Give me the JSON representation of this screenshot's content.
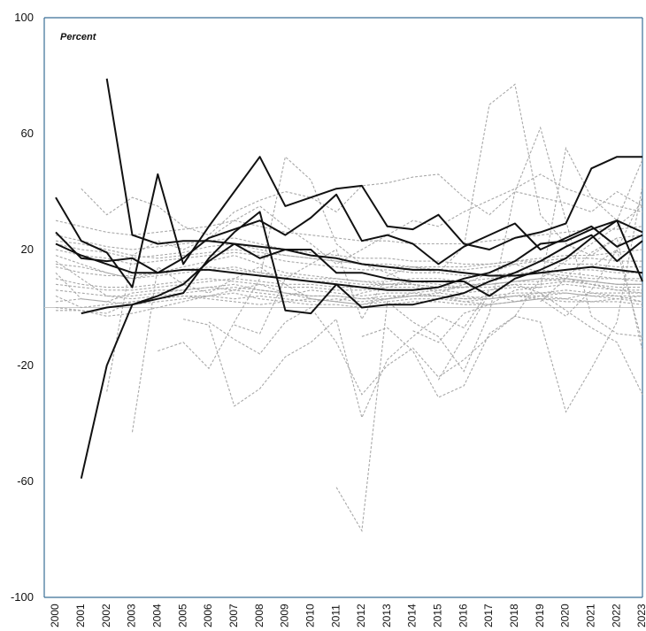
{
  "chart_data": {
    "type": "line",
    "unit_label": "Percent",
    "ylim": [
      -100,
      100
    ],
    "y_ticks": [
      100,
      60,
      20,
      -20,
      -60,
      -100
    ],
    "x": [
      "2000",
      "2001",
      "2002",
      "2003",
      "2004",
      "2005",
      "2006",
      "2007",
      "2008",
      "2009",
      "2010",
      "2011",
      "2012",
      "2013",
      "2014",
      "2015",
      "2016",
      "2017",
      "2018",
      "2019",
      "2020",
      "2021",
      "2022",
      "2023"
    ],
    "zero_line": true,
    "grid": false,
    "legend": "none",
    "colors": {
      "highlight": "#111111",
      "others": "#a8a8a8",
      "axis": "#3a6f96",
      "zero": "#c8c8c8"
    },
    "highlighted_series": [
      {
        "values": [
          null,
          -59,
          -20,
          1,
          3,
          5,
          17,
          26,
          33,
          -1,
          -2,
          8,
          0,
          1,
          1,
          3,
          5,
          9,
          12,
          16,
          21,
          25,
          16,
          23
        ]
      },
      {
        "values": [
          null,
          null,
          79,
          25,
          22,
          23,
          23,
          22,
          21,
          20,
          18,
          17,
          15,
          14,
          13,
          13,
          12,
          11,
          11,
          12,
          13,
          14,
          13,
          12
        ]
      },
      {
        "values": [
          38,
          23,
          19,
          7,
          46,
          15,
          28,
          40,
          52,
          35,
          38,
          41,
          42,
          28,
          27,
          32,
          22,
          20,
          24,
          26,
          29,
          48,
          52,
          52
        ]
      },
      {
        "values": [
          26,
          17,
          16,
          17,
          12,
          17,
          24,
          27,
          30,
          25,
          31,
          39,
          23,
          25,
          22,
          15,
          21,
          25,
          29,
          20,
          24,
          28,
          21,
          25
        ]
      },
      {
        "values": [
          null,
          -2,
          0,
          1,
          4,
          8,
          16,
          22,
          17,
          20,
          20,
          12,
          12,
          10,
          9,
          9,
          9,
          4,
          10,
          13,
          17,
          24,
          30,
          26
        ]
      },
      {
        "values": [
          22,
          18,
          15,
          12,
          12,
          13,
          13,
          12,
          11,
          10,
          9,
          8,
          7,
          6,
          6,
          7,
          10,
          12,
          16,
          22,
          23,
          27,
          30,
          9
        ]
      }
    ],
    "background_series": [
      {
        "values": [
          -1,
          -1,
          -3,
          -2,
          0,
          2,
          4,
          6,
          8,
          5,
          3,
          2,
          1,
          3,
          5,
          4,
          2,
          1,
          2,
          4,
          3,
          5,
          4,
          2
        ]
      },
      {
        "values": [
          4,
          0,
          1,
          2,
          3,
          4,
          4,
          3,
          4,
          3,
          2,
          3,
          2,
          3,
          4,
          5,
          4,
          3,
          4,
          4,
          5,
          4,
          3,
          4
        ]
      },
      {
        "values": [
          10,
          8,
          7,
          7,
          8,
          9,
          10,
          9,
          8,
          7,
          7,
          6,
          6,
          7,
          7,
          6,
          5,
          6,
          7,
          7,
          8,
          7,
          6,
          6
        ]
      },
      {
        "values": [
          15,
          14,
          12,
          10,
          11,
          12,
          13,
          14,
          12,
          10,
          9,
          9,
          8,
          8,
          9,
          9,
          8,
          8,
          9,
          10,
          10,
          9,
          8,
          8
        ]
      },
      {
        "values": [
          20,
          18,
          17,
          15,
          16,
          17,
          18,
          19,
          18,
          16,
          15,
          14,
          13,
          13,
          12,
          12,
          11,
          11,
          12,
          12,
          13,
          13,
          12,
          12
        ]
      },
      {
        "values": [
          25,
          23,
          21,
          20,
          21,
          22,
          23,
          24,
          22,
          20,
          19,
          18,
          17,
          17,
          16,
          16,
          15,
          15,
          16,
          16,
          17,
          17,
          16,
          16
        ]
      },
      {
        "values": [
          18,
          15,
          12,
          10,
          12,
          14,
          16,
          18,
          15,
          12,
          11,
          10,
          9,
          8,
          8,
          7,
          7,
          7,
          8,
          8,
          9,
          9,
          8,
          8
        ]
      },
      {
        "values": [
          2,
          3,
          2,
          1,
          2,
          3,
          4,
          5,
          3,
          2,
          1,
          1,
          0,
          1,
          2,
          2,
          1,
          1,
          2,
          3,
          3,
          2,
          2,
          1
        ]
      },
      {
        "values": [
          6,
          5,
          4,
          4,
          5,
          6,
          7,
          8,
          6,
          5,
          4,
          4,
          3,
          3,
          4,
          4,
          3,
          3,
          4,
          5,
          5,
          4,
          4,
          4
        ]
      },
      {
        "values": [
          12,
          3,
          2,
          5,
          6,
          6,
          7,
          6,
          5,
          4,
          6,
          5,
          4,
          5,
          5,
          6,
          7,
          8,
          9,
          10,
          9,
          8,
          7,
          7
        ]
      },
      {
        "values": [
          0,
          -1,
          -2,
          2,
          3,
          4,
          3,
          2,
          1,
          2,
          3,
          2,
          1,
          2,
          3,
          3,
          2,
          3,
          4,
          3,
          2,
          2,
          3,
          2
        ]
      },
      {
        "values": [
          22,
          20,
          19,
          17,
          18,
          19,
          21,
          22,
          20,
          18,
          17,
          16,
          15,
          14,
          14,
          13,
          13,
          14,
          15,
          16,
          15,
          15,
          14,
          14
        ]
      },
      {
        "values": [
          14,
          12,
          11,
          11,
          12,
          13,
          14,
          13,
          12,
          11,
          10,
          10,
          9,
          9,
          10,
          10,
          9,
          10,
          11,
          12,
          11,
          10,
          10,
          10
        ]
      },
      {
        "values": [
          8,
          7,
          6,
          6,
          7,
          8,
          9,
          10,
          9,
          8,
          8,
          7,
          7,
          8,
          8,
          7,
          7,
          8,
          9,
          9,
          10,
          9,
          8,
          8
        ]
      },
      {
        "values": [
          30,
          28,
          26,
          25,
          26,
          27,
          28,
          30,
          28,
          26,
          25,
          24,
          23,
          23,
          22,
          22,
          22,
          23,
          24,
          25,
          26,
          27,
          27,
          28
        ]
      },
      {
        "values": [
          23,
          22,
          20,
          18,
          17,
          18,
          19,
          20,
          19,
          18,
          17,
          16,
          15,
          15,
          14,
          14,
          14,
          15,
          16,
          17,
          18,
          18,
          19,
          20
        ]
      },
      {
        "values": [
          16,
          10,
          4,
          3,
          4,
          5,
          6,
          7,
          6,
          5,
          4,
          4,
          3,
          4,
          4,
          4,
          3,
          4,
          5,
          5,
          6,
          5,
          5,
          5
        ]
      },
      {
        "values": [
          null,
          41,
          32,
          38,
          35,
          28,
          25,
          33,
          37,
          40,
          38,
          33,
          42,
          43,
          45,
          46,
          38,
          32,
          40,
          38,
          36,
          33,
          40,
          35
        ]
      },
      {
        "values": [
          null,
          null,
          -29,
          18,
          23,
          20,
          24,
          30,
          35,
          28,
          22,
          15,
          20,
          25,
          30,
          28,
          33,
          37,
          41,
          46,
          41,
          38,
          35,
          33
        ]
      },
      {
        "values": [
          null,
          null,
          null,
          -43,
          14,
          8,
          5,
          10,
          14,
          8,
          3,
          2,
          5,
          7,
          9,
          8,
          7,
          9,
          11,
          13,
          12,
          11,
          10,
          9
        ]
      },
      {
        "values": [
          null,
          null,
          null,
          null,
          -15,
          -12,
          -21,
          -5,
          10,
          52,
          44,
          22,
          15,
          12,
          8,
          5,
          8,
          12,
          15,
          12,
          10,
          8,
          6,
          5
        ]
      },
      {
        "values": [
          null,
          null,
          null,
          null,
          null,
          -4,
          -6,
          -34,
          -28,
          -17,
          -12,
          -4,
          -38,
          -18,
          -10,
          -3,
          -7,
          6,
          8,
          5,
          -1,
          -7,
          -12,
          -30
        ]
      },
      {
        "values": [
          null,
          null,
          null,
          null,
          null,
          null,
          -5,
          -11,
          -16,
          -5,
          0,
          -12,
          -30,
          -20,
          -14,
          -24,
          -18,
          -10,
          -3,
          10,
          16,
          22,
          28,
          35
        ]
      },
      {
        "values": [
          null,
          null,
          null,
          null,
          null,
          null,
          null,
          -6,
          -9,
          10,
          15,
          20,
          -4,
          11,
          14,
          12,
          21,
          70,
          77,
          32,
          22,
          18,
          24,
          25
        ]
      },
      {
        "values": [
          null,
          null,
          null,
          null,
          null,
          null,
          null,
          null,
          null,
          null,
          null,
          -62,
          -77,
          2,
          -5,
          -10,
          -22,
          -2,
          40,
          62,
          30,
          -3,
          -9,
          -10
        ]
      },
      {
        "values": [
          null,
          null,
          null,
          null,
          null,
          null,
          null,
          null,
          null,
          null,
          null,
          null,
          -10,
          -7,
          -15,
          -31,
          -27,
          -9,
          -3,
          -5,
          -36,
          -21,
          -5,
          42
        ]
      },
      {
        "values": [
          null,
          null,
          null,
          null,
          null,
          null,
          null,
          null,
          null,
          null,
          null,
          null,
          null,
          null,
          -8,
          -12,
          -2,
          1,
          6,
          7,
          55,
          38,
          30,
          51
        ]
      },
      {
        "values": [
          null,
          null,
          null,
          null,
          null,
          null,
          null,
          null,
          null,
          null,
          null,
          null,
          null,
          null,
          null,
          -25,
          -10,
          5,
          2,
          3,
          -3,
          6,
          20,
          38
        ]
      },
      {
        "values": [
          null,
          null,
          null,
          null,
          null,
          null,
          null,
          null,
          null,
          null,
          null,
          null,
          null,
          null,
          null,
          null,
          null,
          null,
          null,
          2,
          10,
          19,
          24,
          -15
        ]
      },
      {
        "values": [
          null,
          null,
          null,
          null,
          null,
          null,
          null,
          null,
          null,
          null,
          null,
          null,
          null,
          null,
          null,
          null,
          null,
          null,
          null,
          null,
          null,
          14,
          20,
          -12
        ]
      }
    ]
  }
}
